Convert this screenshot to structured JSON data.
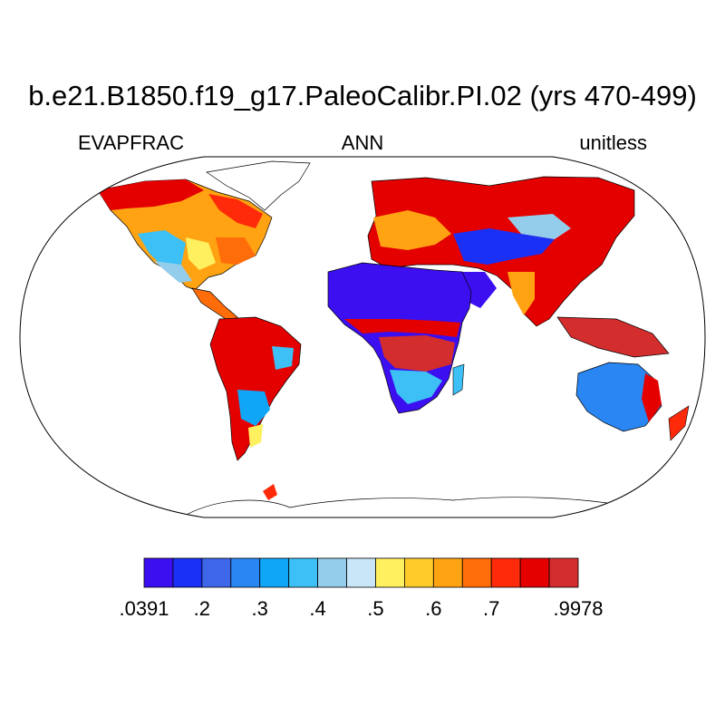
{
  "title": "b.e21.B1850.f19_g17.PaleoCalibr.PI.02 (yrs 470-499)",
  "subtitle": {
    "left": "EVAPFRAC",
    "center": "ANN",
    "right": "unitless"
  },
  "map": {
    "projection": "robinson",
    "variable": "EVAPFRAC",
    "field_description": "annual mean evaporative fraction over land; high over humid tropics, boreal zones and eastern Asia; very low over Sahara, Arabia, central Asia and interior Australia"
  },
  "colorbar": {
    "colors": [
      "#3b0ff0",
      "#1a30f5",
      "#3e66e8",
      "#2a86f2",
      "#10a6f7",
      "#3cc0f5",
      "#94cdec",
      "#c8e6f7",
      "#fff060",
      "#ffcb2a",
      "#ffa312",
      "#ff6d0a",
      "#ff2a0a",
      "#e50000",
      "#d42d2d"
    ],
    "labels": [
      ".0391",
      ".2",
      ".3",
      ".4",
      ".5",
      ".6",
      ".7",
      ".9978"
    ]
  }
}
